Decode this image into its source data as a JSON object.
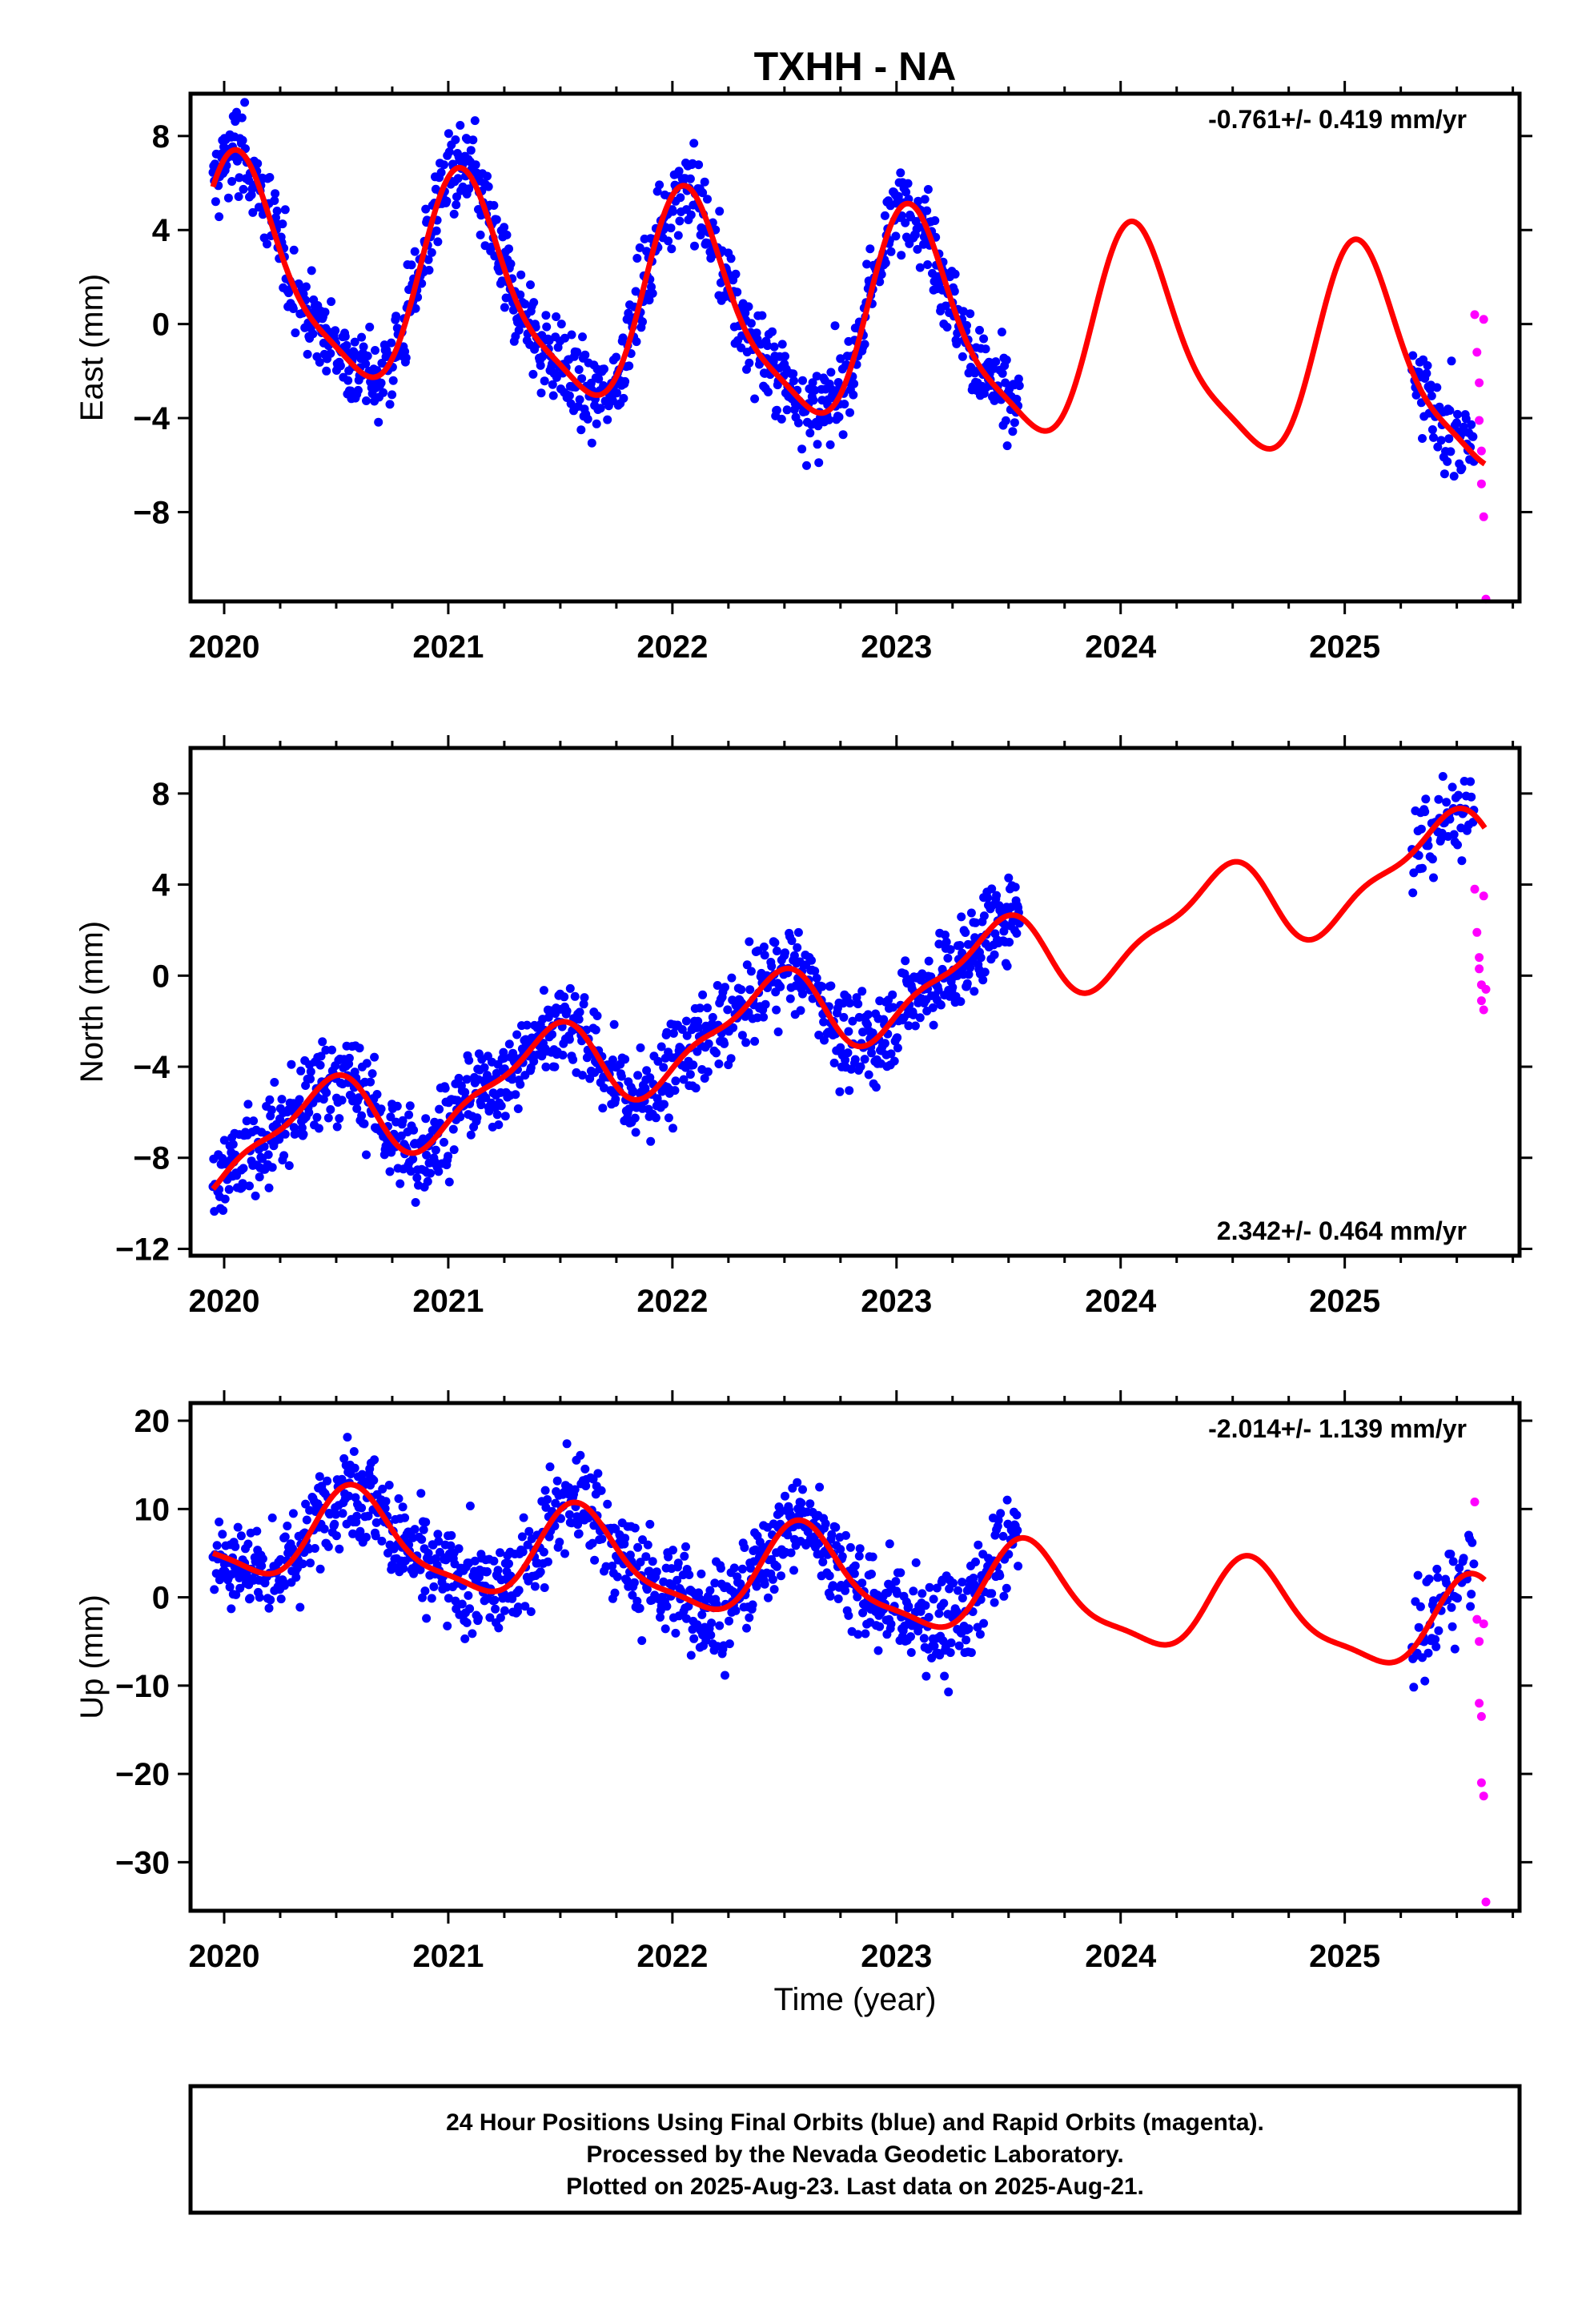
{
  "title": "TXHH - NA",
  "xlabel": "Time (year)",
  "colors": {
    "final": "#0000ff",
    "rapid": "#ff00ff",
    "model": "#ff0000"
  },
  "x_ticks": [
    2020,
    2021,
    2022,
    2023,
    2024,
    2025
  ],
  "xlim": [
    2019.85,
    2025.78
  ],
  "footer": {
    "line1": "24 Hour Positions Using Final Orbits (blue) and Rapid Orbits (magenta).",
    "line2": "Processed by the Nevada Geodetic Laboratory.",
    "line3": "Plotted on 2025-Aug-23. Last data on 2025-Aug-21."
  },
  "chart_data": [
    {
      "type": "scatter",
      "ylabel": "East (mm)",
      "rate": "-0.761+/- 0.419 mm/yr",
      "rate_position": "top-right",
      "ylim": [
        -11.8,
        9.8
      ],
      "y_ticks": [
        8,
        4,
        0,
        -4,
        -8
      ],
      "model": {
        "rate": -0.761,
        "offset": 0.3,
        "annual_cos": 3.8,
        "annual_sin": 2.1,
        "semi_cos": 1.0,
        "semi_sin": 0.3
      },
      "final_range": [
        2019.95,
        2023.55
      ],
      "final_range_2": [
        2025.3,
        2025.58
      ],
      "noise": 1.6,
      "rapid_x": [
        2025.58,
        2025.59,
        2025.6,
        2025.6,
        2025.61,
        2025.61,
        2025.62,
        2025.62,
        2025.63
      ],
      "rapid_y": [
        0.4,
        -1.2,
        -2.5,
        -4.1,
        -5.4,
        -6.8,
        -8.2,
        0.2,
        -11.7
      ]
    },
    {
      "type": "scatter",
      "ylabel": "North (mm)",
      "rate": "2.342+/- 0.464 mm/yr",
      "rate_position": "bottom-right",
      "ylim": [
        -12.3,
        10
      ],
      "y_ticks": [
        8,
        4,
        0,
        -4,
        -8,
        -12
      ],
      "model": {
        "rate": 2.342,
        "offset": -1.8,
        "annual_cos": -1.6,
        "annual_sin": 0.8,
        "semi_cos": 0.5,
        "semi_sin": 0.4
      },
      "final_range": [
        2019.95,
        2023.55
      ],
      "final_range_2": [
        2025.3,
        2025.58
      ],
      "noise": 1.7,
      "rapid_x": [
        2025.58,
        2025.59,
        2025.6,
        2025.6,
        2025.61,
        2025.61,
        2025.62,
        2025.62,
        2025.63
      ],
      "rapid_y": [
        3.8,
        1.9,
        0.8,
        0.3,
        -0.4,
        -1.1,
        -1.5,
        3.5,
        -0.6
      ]
    },
    {
      "type": "scatter",
      "ylabel": "Up (mm)",
      "rate": "-2.014+/- 1.139 mm/yr",
      "rate_position": "top-right",
      "ylim": [
        -35.5,
        22
      ],
      "y_ticks": [
        20,
        10,
        0,
        -10,
        -20,
        -30
      ],
      "model": {
        "rate": -2.014,
        "offset": 2.5,
        "annual_cos": -4.2,
        "annual_sin": -2.8,
        "semi_cos": 1.2,
        "semi_sin": 0.8
      },
      "final_range": [
        2019.95,
        2023.55
      ],
      "final_range_2": [
        2025.3,
        2025.58
      ],
      "noise": 4.8,
      "rapid_x": [
        2025.58,
        2025.59,
        2025.6,
        2025.6,
        2025.61,
        2025.61,
        2025.62,
        2025.62,
        2025.63
      ],
      "rapid_y": [
        10.8,
        -2.5,
        -5.0,
        -12.0,
        -13.5,
        -21.0,
        -22.5,
        -3.0,
        -34.5
      ]
    }
  ]
}
